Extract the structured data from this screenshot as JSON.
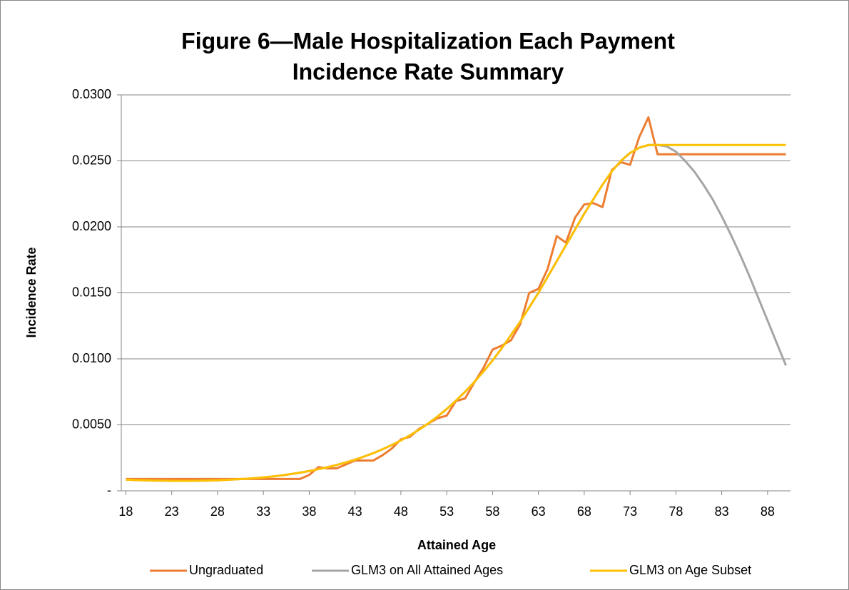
{
  "chart_data": {
    "type": "line",
    "title": "Figure 6—Male Hospitalization Each Payment",
    "subtitle": "Incidence Rate Summary",
    "x_label": "Attained Age",
    "y_label": "Incidence Rate",
    "x": [
      18,
      19,
      20,
      21,
      22,
      23,
      24,
      25,
      26,
      27,
      28,
      29,
      30,
      31,
      32,
      33,
      34,
      35,
      36,
      37,
      38,
      39,
      40,
      41,
      42,
      43,
      44,
      45,
      46,
      47,
      48,
      49,
      50,
      51,
      52,
      53,
      54,
      55,
      56,
      57,
      58,
      59,
      60,
      61,
      62,
      63,
      64,
      65,
      66,
      67,
      68,
      69,
      70,
      71,
      72,
      73,
      74,
      75,
      76,
      77,
      78,
      79,
      80,
      81,
      82,
      83,
      84,
      85,
      86,
      87,
      88,
      89,
      90
    ],
    "xlim": [
      17.5,
      90.5
    ],
    "xticks": [
      18,
      23,
      28,
      33,
      38,
      43,
      48,
      53,
      58,
      63,
      68,
      73,
      78,
      83,
      88
    ],
    "ylim": [
      0,
      0.03
    ],
    "yticks": [
      {
        "value": 0,
        "label": "-"
      },
      {
        "value": 0.005,
        "label": "0.0050"
      },
      {
        "value": 0.01,
        "label": "0.0100"
      },
      {
        "value": 0.015,
        "label": "0.0150"
      },
      {
        "value": 0.02,
        "label": "0.0200"
      },
      {
        "value": 0.025,
        "label": "0.0250"
      },
      {
        "value": 0.03,
        "label": "0.0300"
      }
    ],
    "grid": true,
    "legend": "bottom",
    "series": [
      {
        "name": "Ungraduated",
        "color": "#ed7d31",
        "values": [
          0.0009,
          0.0009,
          0.0009,
          0.0009,
          0.0009,
          0.0009,
          0.0009,
          0.0009,
          0.0009,
          0.0009,
          0.0009,
          0.0009,
          0.0009,
          0.0009,
          0.0009,
          0.0009,
          0.0009,
          0.0009,
          0.0009,
          0.0009,
          0.0012,
          0.0018,
          0.0017,
          0.0017,
          0.002,
          0.0023,
          0.0023,
          0.0023,
          0.0027,
          0.0032,
          0.0039,
          0.0041,
          0.0047,
          0.0051,
          0.0055,
          0.0057,
          0.0068,
          0.007,
          0.0082,
          0.0093,
          0.0107,
          0.011,
          0.0114,
          0.0126,
          0.015,
          0.0153,
          0.0168,
          0.0193,
          0.0188,
          0.0207,
          0.0217,
          0.0218,
          0.0215,
          0.0243,
          0.0249,
          0.0247,
          0.0268,
          0.0283,
          0.0255,
          0.0255,
          0.0255,
          0.0255,
          0.0255,
          0.0255,
          0.0255,
          0.0255,
          0.0255,
          0.0255,
          0.0255,
          0.0255,
          0.0255,
          0.0255,
          0.0255
        ]
      },
      {
        "name": "GLM3 on All Attained Ages",
        "color": "#a5a5a5",
        "values": [
          0.00085,
          0.00082,
          0.0008,
          0.00078,
          0.00077,
          0.00076,
          0.00076,
          0.00076,
          0.00077,
          0.00078,
          0.0008,
          0.00083,
          0.00087,
          0.00091,
          0.00096,
          0.00102,
          0.00109,
          0.00117,
          0.00127,
          0.00138,
          0.0015,
          0.00164,
          0.00179,
          0.00196,
          0.00215,
          0.00236,
          0.0026,
          0.00286,
          0.00315,
          0.00347,
          0.00382,
          0.00421,
          0.00464,
          0.00511,
          0.00563,
          0.0062,
          0.00683,
          0.0075,
          0.00824,
          0.00903,
          0.00988,
          0.0108,
          0.0118,
          0.0128,
          0.0139,
          0.015,
          0.0162,
          0.0174,
          0.0186,
          0.0198,
          0.021,
          0.0221,
          0.0232,
          0.0242,
          0.025,
          0.0256,
          0.026,
          0.0262,
          0.0262,
          0.0261,
          0.0257,
          0.025,
          0.0242,
          0.0232,
          0.0221,
          0.0208,
          0.0194,
          0.0179,
          0.0163,
          0.0146,
          0.0129,
          0.0112,
          0.0095
        ]
      },
      {
        "name": "GLM3 on Age Subset",
        "color": "#ffc000",
        "values": [
          0.00085,
          0.00082,
          0.0008,
          0.00078,
          0.00077,
          0.00076,
          0.00076,
          0.00076,
          0.00077,
          0.00078,
          0.0008,
          0.00083,
          0.00087,
          0.00091,
          0.00096,
          0.00102,
          0.00109,
          0.00117,
          0.00127,
          0.00138,
          0.0015,
          0.00164,
          0.00179,
          0.00196,
          0.00215,
          0.00236,
          0.0026,
          0.00286,
          0.00315,
          0.00347,
          0.00382,
          0.00421,
          0.00464,
          0.00511,
          0.00563,
          0.0062,
          0.00683,
          0.0075,
          0.00824,
          0.00903,
          0.00988,
          0.0108,
          0.0118,
          0.0128,
          0.0139,
          0.015,
          0.0162,
          0.0174,
          0.0186,
          0.0198,
          0.021,
          0.0221,
          0.0232,
          0.0242,
          0.025,
          0.0256,
          0.026,
          0.0262,
          0.0262,
          0.0262,
          0.0262,
          0.0262,
          0.0262,
          0.0262,
          0.0262,
          0.0262,
          0.0262,
          0.0262,
          0.0262,
          0.0262,
          0.0262,
          0.0262,
          0.0262
        ]
      }
    ]
  }
}
